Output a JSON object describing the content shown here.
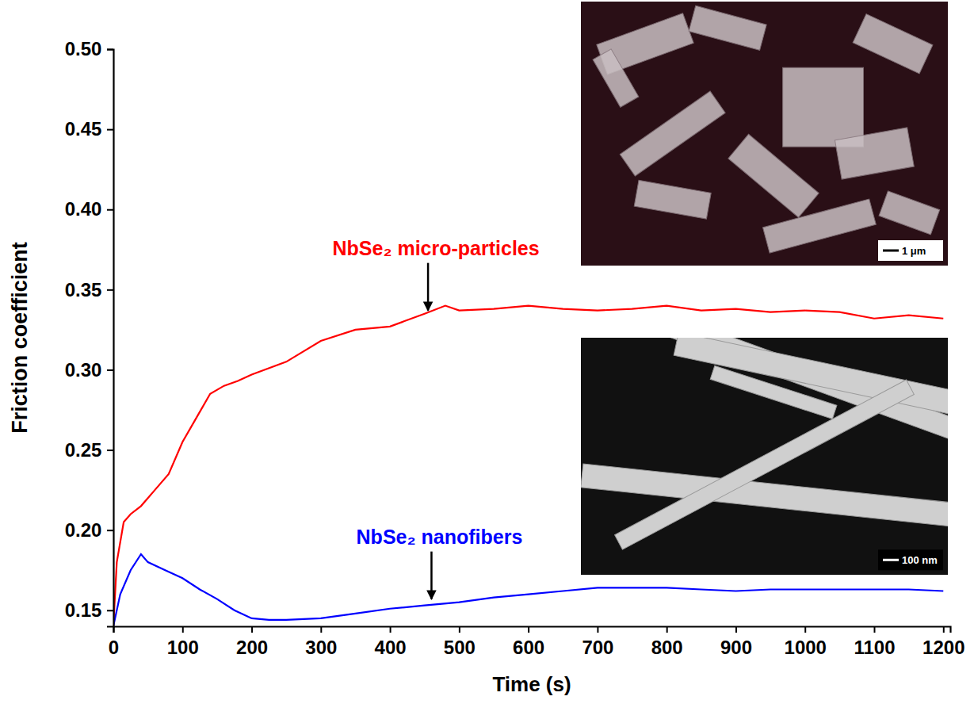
{
  "chart_data": {
    "type": "line",
    "x_label": "Time (s)",
    "y_label": "Friction coefficient",
    "xlim": [
      0,
      1210
    ],
    "ylim": [
      0.14,
      0.5
    ],
    "xticks": [
      0,
      100,
      200,
      300,
      400,
      500,
      600,
      700,
      800,
      900,
      1000,
      1100,
      1200
    ],
    "yticks": [
      0.15,
      {
        "value": 0.2,
        "label": "0.20"
      },
      0.25,
      {
        "value": 0.3,
        "label": "0.30"
      },
      0.35,
      {
        "value": 0.4,
        "label": "0.40"
      },
      0.45,
      {
        "value": 0.5,
        "label": "0.50"
      }
    ],
    "grid": false,
    "series": [
      {
        "color": "#ff0000",
        "x": [
          0,
          5,
          15,
          25,
          40,
          60,
          80,
          100,
          120,
          140,
          160,
          180,
          200,
          250,
          300,
          350,
          400,
          450,
          480,
          500,
          550,
          600,
          650,
          700,
          750,
          800,
          850,
          900,
          950,
          1000,
          1050,
          1100,
          1150,
          1200
        ],
        "values": [
          0.14,
          0.18,
          0.205,
          0.21,
          0.215,
          0.225,
          0.235,
          0.255,
          0.27,
          0.285,
          0.29,
          0.293,
          0.297,
          0.305,
          0.318,
          0.325,
          0.327,
          0.335,
          0.34,
          0.337,
          0.338,
          0.34,
          0.338,
          0.337,
          0.338,
          0.34,
          0.337,
          0.338,
          0.336,
          0.337,
          0.336,
          0.332,
          0.334,
          0.332
        ]
      },
      {
        "color": "#0000ff",
        "x": [
          0,
          10,
          25,
          40,
          50,
          75,
          100,
          125,
          150,
          175,
          200,
          225,
          250,
          300,
          350,
          400,
          450,
          500,
          550,
          600,
          650,
          700,
          750,
          800,
          850,
          900,
          950,
          1000,
          1050,
          1100,
          1150,
          1200
        ],
        "values": [
          0.14,
          0.16,
          0.175,
          0.185,
          0.18,
          0.175,
          0.17,
          0.163,
          0.157,
          0.15,
          0.145,
          0.144,
          0.144,
          0.145,
          0.148,
          0.151,
          0.153,
          0.155,
          0.158,
          0.16,
          0.162,
          0.164,
          0.164,
          0.164,
          0.163,
          0.162,
          0.163,
          0.163,
          0.163,
          0.163,
          0.163,
          0.162
        ]
      }
    ],
    "annotations": [
      {
        "text": "NbSe₂ micro-particles",
        "x": 455,
        "y": 0.336,
        "color": "#ff0000"
      },
      {
        "text": "NbSe₂ nanofibers",
        "x": 460,
        "y": 0.156,
        "color": "#0000ff"
      }
    ],
    "insets": [
      {
        "scale_label": "1 μm"
      },
      {
        "scale_label": "100 nm"
      }
    ]
  }
}
